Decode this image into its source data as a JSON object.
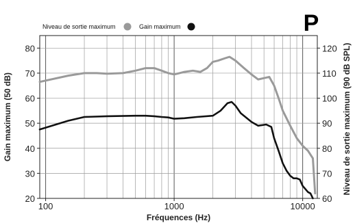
{
  "chart_data": {
    "type": "line",
    "title": "",
    "badge": "P",
    "xlabel": "Fréquences (Hz)",
    "ylabel_left": "Gain maximum (50 dB)",
    "ylabel_right": "Niveau de sortie maximum (90 dB SPL)",
    "x_scale": "log",
    "xlim": [
      90,
      13000
    ],
    "ylim_left": [
      20,
      85
    ],
    "ylim_right": [
      60,
      125
    ],
    "x_ticks": [
      100,
      1000,
      10000
    ],
    "x_tick_labels": [
      "100",
      "1000",
      "10000"
    ],
    "y_left_ticks": [
      20,
      30,
      40,
      50,
      60,
      70,
      80
    ],
    "y_left_tick_labels": [
      "20",
      "30",
      "40",
      "50",
      "60",
      "70",
      "80"
    ],
    "y_right_ticks": [
      60,
      70,
      80,
      90,
      100,
      110,
      120
    ],
    "y_right_tick_labels": [
      "60",
      "70",
      "80",
      "90",
      "100",
      "110",
      "120"
    ],
    "grid": true,
    "legend_position": "top-left",
    "series": [
      {
        "name": "Niveau de sortie maximum",
        "axis": "right",
        "color": "#9a9a9a",
        "x": [
          90,
          150,
          200,
          250,
          300,
          400,
          500,
          600,
          700,
          800,
          900,
          1000,
          1100,
          1200,
          1400,
          1600,
          1800,
          2000,
          2200,
          2500,
          2700,
          3000,
          3500,
          4000,
          4500,
          5000,
          5500,
          6000,
          6500,
          7000,
          8000,
          9000,
          10000,
          11000,
          12000,
          12500
        ],
        "y": [
          106.5,
          109,
          110,
          110,
          109.8,
          110,
          111,
          112,
          112,
          111,
          110,
          109.5,
          110,
          110.5,
          111,
          110.5,
          112,
          114.5,
          115,
          116,
          116.5,
          115,
          112,
          109.5,
          107.5,
          108,
          108.5,
          105,
          100,
          95,
          89,
          84,
          81,
          79,
          76,
          62
        ]
      },
      {
        "name": "Gain maximum",
        "axis": "left",
        "color": "#111111",
        "x": [
          90,
          150,
          200,
          300,
          500,
          600,
          700,
          800,
          900,
          1000,
          1200,
          1500,
          2000,
          2300,
          2600,
          2800,
          3000,
          3300,
          4000,
          4500,
          5200,
          5700,
          6000,
          6500,
          7000,
          7500,
          8000,
          8500,
          9000,
          9500,
          10000,
          11000,
          11500,
          12000
        ],
        "y": [
          47.5,
          51,
          52.5,
          52.8,
          53,
          53,
          52.8,
          52.5,
          52.3,
          51.8,
          52,
          52.5,
          53,
          55,
          58,
          58.5,
          57,
          54,
          50.5,
          49,
          49.5,
          48.5,
          44,
          39,
          34,
          31,
          29,
          28,
          28,
          27.5,
          25,
          22.5,
          22,
          20
        ]
      }
    ]
  }
}
